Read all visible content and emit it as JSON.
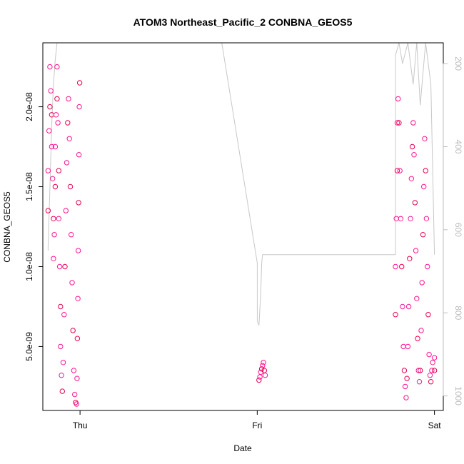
{
  "chart_data": {
    "type": "scatter",
    "title": "ATOM3 Northeast_Pacific_2 CONBNA_GEOS5",
    "xlabel": "Date",
    "ylabel": "CONBNA_GEOS5",
    "x_ticks": [
      {
        "label": "Thu",
        "day": 1.0
      },
      {
        "label": "Fri",
        "day": 2.0
      },
      {
        "label": "Sat",
        "day": 3.0
      }
    ],
    "xlim": [
      0.79,
      3.05
    ],
    "ylim": [
      1e-09,
      2.4e-08
    ],
    "y_ticks": [
      {
        "label": "5.0e-09",
        "value": 5e-09
      },
      {
        "label": "1.0e-08",
        "value": 1e-08
      },
      {
        "label": "1.5e-08",
        "value": 1.5e-08
      },
      {
        "label": "2.0e-08",
        "value": 2e-08
      }
    ],
    "right_axis": {
      "quantity": "pressure",
      "reversed": true,
      "range": [
        150,
        1035
      ],
      "ticks": [
        200,
        400,
        600,
        800,
        1000
      ],
      "color": "#bdbdbd"
    },
    "marker_color": "#ff1493",
    "marker_color_alt": "#e8004f",
    "line_color": "#c8c8c8",
    "series": [
      {
        "points": [
          [
            0.82,
            1.35e-08
          ],
          [
            0.82,
            1.6e-08
          ],
          [
            0.825,
            1.85e-08
          ],
          [
            0.83,
            2e-08
          ],
          [
            0.83,
            2.25e-08
          ],
          [
            0.835,
            2.1e-08
          ],
          [
            0.84,
            1.95e-08
          ],
          [
            0.84,
            1.75e-08
          ],
          [
            0.845,
            1.55e-08
          ],
          [
            0.85,
            1.3e-08
          ],
          [
            0.85,
            1.05e-08
          ],
          [
            0.855,
            1.2e-08
          ],
          [
            0.86,
            1.5e-08
          ],
          [
            0.86,
            1.75e-08
          ],
          [
            0.865,
            1.95e-08
          ],
          [
            0.87,
            2.05e-08
          ],
          [
            0.87,
            2.25e-08
          ],
          [
            0.875,
            1.9e-08
          ],
          [
            0.88,
            1.6e-08
          ],
          [
            0.88,
            1.3e-08
          ],
          [
            0.885,
            1e-08
          ],
          [
            0.89,
            7.5e-09
          ],
          [
            0.89,
            5e-09
          ],
          [
            0.895,
            3.2e-09
          ],
          [
            0.9,
            2.2e-09
          ],
          [
            0.905,
            4e-09
          ],
          [
            0.91,
            7e-09
          ],
          [
            0.915,
            1e-08
          ],
          [
            0.92,
            1.35e-08
          ],
          [
            0.925,
            1.65e-08
          ],
          [
            0.93,
            1.9e-08
          ],
          [
            0.935,
            2.05e-08
          ],
          [
            0.94,
            1.8e-08
          ],
          [
            0.945,
            1.5e-08
          ],
          [
            0.95,
            1.2e-08
          ],
          [
            0.955,
            9e-09
          ],
          [
            0.96,
            6e-09
          ],
          [
            0.965,
            3.5e-09
          ],
          [
            0.97,
            2e-09
          ],
          [
            0.975,
            1.5e-09
          ],
          [
            0.98,
            1.4e-09
          ],
          [
            0.983,
            3e-09
          ],
          [
            0.985,
            5.5e-09
          ],
          [
            0.988,
            8e-09
          ],
          [
            0.99,
            1.1e-08
          ],
          [
            0.992,
            1.4e-08
          ],
          [
            0.994,
            1.7e-08
          ],
          [
            0.996,
            2e-08
          ],
          [
            0.998,
            2.15e-08
          ]
        ]
      },
      {
        "points": [
          [
            2.01,
            2.9e-09
          ],
          [
            2.015,
            3.1e-09
          ],
          [
            2.02,
            3.4e-09
          ],
          [
            2.025,
            3.6e-09
          ],
          [
            2.03,
            3.8e-09
          ],
          [
            2.035,
            4e-09
          ],
          [
            2.04,
            3.5e-09
          ],
          [
            2.045,
            3.2e-09
          ]
        ]
      },
      {
        "points": [
          [
            2.78,
            7e-09
          ],
          [
            2.78,
            1e-08
          ],
          [
            2.785,
            1.3e-08
          ],
          [
            2.79,
            1.6e-08
          ],
          [
            2.79,
            1.9e-08
          ],
          [
            2.795,
            2.05e-08
          ],
          [
            2.8,
            1.9e-08
          ],
          [
            2.805,
            1.6e-08
          ],
          [
            2.81,
            1.3e-08
          ],
          [
            2.815,
            1e-08
          ],
          [
            2.82,
            7.5e-09
          ],
          [
            2.825,
            5e-09
          ],
          [
            2.83,
            3.5e-09
          ],
          [
            2.835,
            2.5e-09
          ],
          [
            2.84,
            1.8e-09
          ],
          [
            2.845,
            3e-09
          ],
          [
            2.85,
            5e-09
          ],
          [
            2.855,
            7.5e-09
          ],
          [
            2.86,
            1.05e-08
          ],
          [
            2.865,
            1.3e-08
          ],
          [
            2.87,
            1.55e-08
          ],
          [
            2.875,
            1.75e-08
          ],
          [
            2.88,
            1.9e-08
          ],
          [
            2.885,
            1.7e-08
          ],
          [
            2.89,
            1.4e-08
          ],
          [
            2.895,
            1.1e-08
          ],
          [
            2.9,
            8e-09
          ],
          [
            2.905,
            5.5e-09
          ],
          [
            2.91,
            3.5e-09
          ],
          [
            2.915,
            2.8e-09
          ],
          [
            2.92,
            3.5e-09
          ],
          [
            2.925,
            6e-09
          ],
          [
            2.93,
            9e-09
          ],
          [
            2.935,
            1.2e-08
          ],
          [
            2.94,
            1.5e-08
          ],
          [
            2.945,
            1.8e-08
          ],
          [
            2.95,
            1.6e-08
          ],
          [
            2.955,
            1.3e-08
          ],
          [
            2.96,
            1e-08
          ],
          [
            2.965,
            7e-09
          ],
          [
            2.97,
            4.5e-09
          ],
          [
            2.975,
            3.2e-09
          ],
          [
            2.98,
            2.8e-09
          ],
          [
            2.985,
            3.5e-09
          ],
          [
            2.99,
            4e-09
          ],
          [
            3.0,
            3.5e-09
          ],
          [
            3.0,
            4.3e-09
          ]
        ]
      }
    ],
    "pressure_line": {
      "points": [
        [
          0.82,
          650
        ],
        [
          0.82,
          640
        ],
        [
          0.83,
          500
        ],
        [
          0.84,
          350
        ],
        [
          0.85,
          250
        ],
        [
          0.86,
          190
        ],
        [
          0.87,
          150
        ],
        [
          0.9,
          150
        ],
        [
          0.95,
          150
        ],
        [
          0.98,
          150
        ],
        [
          1.0,
          150
        ],
        [
          1.2,
          150
        ],
        [
          1.4,
          150
        ],
        [
          1.6,
          150
        ],
        [
          1.8,
          150
        ],
        [
          2.0,
          680
        ],
        [
          2.0,
          820
        ],
        [
          2.01,
          830
        ],
        [
          2.02,
          750
        ],
        [
          2.025,
          680
        ],
        [
          2.03,
          660
        ],
        [
          2.4,
          660
        ],
        [
          2.7,
          660
        ],
        [
          2.78,
          660
        ],
        [
          2.78,
          180
        ],
        [
          2.8,
          150
        ],
        [
          2.82,
          200
        ],
        [
          2.85,
          150
        ],
        [
          2.88,
          250
        ],
        [
          2.9,
          150
        ],
        [
          2.92,
          300
        ],
        [
          2.95,
          150
        ],
        [
          2.98,
          250
        ],
        [
          3.0,
          660
        ]
      ]
    }
  }
}
